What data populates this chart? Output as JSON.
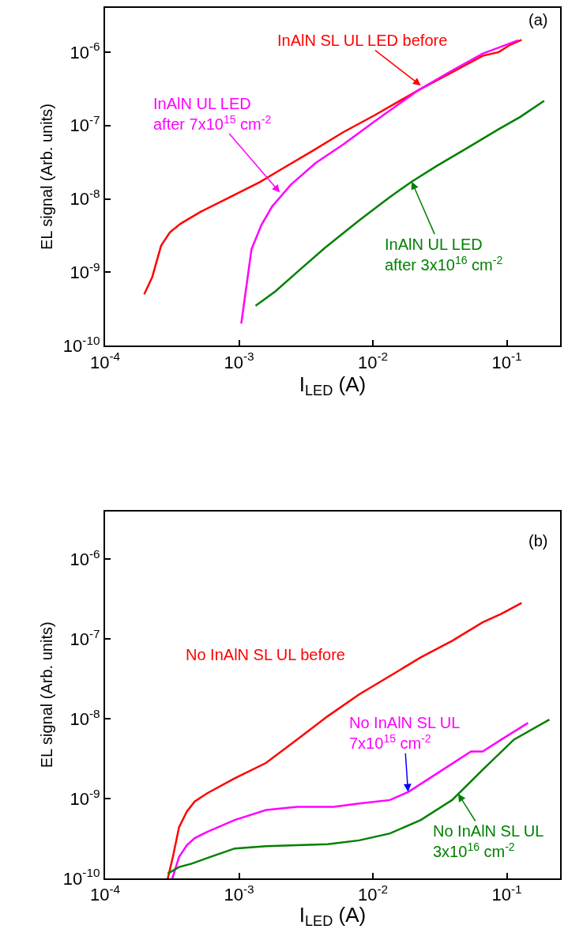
{
  "chart_data": [
    {
      "type": "line",
      "xlabel": "I$_{LED}$ (A)",
      "ylabel": "EL signal (Arb. units)",
      "log": "xy",
      "xlim": [
        0.0001,
        0.25
      ],
      "ylim": [
        1e-10,
        4e-06
      ],
      "xticks": [
        {
          "value": 0.0001,
          "label": "10$^{-4}$"
        },
        {
          "value": 0.001,
          "label": "10$^{-3}$"
        },
        {
          "value": 0.01,
          "label": "10$^{-2}$"
        },
        {
          "value": 0.1,
          "label": "10$^{-1}$"
        }
      ],
      "yticks": [
        {
          "value": 1e-10,
          "label": "10$^{-10}$"
        },
        {
          "value": 1e-09,
          "label": "10$^{-9}$"
        },
        {
          "value": 1e-08,
          "label": "10$^{-8}$"
        },
        {
          "value": 1e-07,
          "label": "10$^{-7}$"
        },
        {
          "value": 1e-06,
          "label": "10$^{-6}$"
        }
      ],
      "series": [
        {
          "color": "#ff0000",
          "x": [
            0.000196,
            0.000225,
            0.000262,
            0.000305,
            0.000367,
            0.00052,
            0.00104,
            0.00143,
            0.00197,
            0.00354,
            0.006,
            0.0103,
            0.0217,
            0.039,
            0.066,
            0.087,
            0.107,
            0.129
          ],
          "values": [
            5e-10,
            8.6e-10,
            2.3e-09,
            3.5e-09,
            4.6e-09,
            6.7e-09,
            1.26e-08,
            1.69e-08,
            2.4e-08,
            4.5e-08,
            8.1e-08,
            1.38e-07,
            3e-07,
            5.3e-07,
            8.9e-07,
            1e-06,
            1.27e-06,
            1.47e-06
          ]
        },
        {
          "color": "#ff00ff",
          "x": [
            0.00104,
            0.00124,
            0.00147,
            0.00177,
            0.00244,
            0.00373,
            0.006,
            0.0103,
            0.0217,
            0.039,
            0.066,
            0.122
          ],
          "values": [
            2e-10,
            2.05e-09,
            4.4e-09,
            7.9e-09,
            1.56e-08,
            3.07e-08,
            5.5e-08,
            1.14e-07,
            3e-07,
            5.6e-07,
            9.5e-07,
            1.45e-06
          ]
        },
        {
          "color": "#008000",
          "x": [
            0.00133,
            0.00187,
            0.00286,
            0.00438,
            0.0079,
            0.0134,
            0.0195,
            0.0298,
            0.051,
            0.087,
            0.126,
            0.19
          ],
          "values": [
            3.5e-10,
            5.5e-10,
            1.09e-09,
            2.15e-09,
            5.1e-09,
            1.06e-08,
            1.72e-08,
            2.79e-08,
            4.98e-08,
            8.9e-08,
            1.31e-07,
            2.17e-07
          ]
        }
      ],
      "annotations": [
        {
          "text": "InAlN SL UL LED before",
          "x": 0.0228,
          "y": 3.5e-07
        },
        {
          "text": "InAlN UL LED\nafter 7x10$^{15}$ cm$^{-2}$",
          "x": 0.00202,
          "y": 1.22e-08
        },
        {
          "text": "InAlN UL LED\nafter 3x10$^{16}$ cm$^{-2}$",
          "x": 0.0195,
          "y": 1.72e-08
        },
        "(a)"
      ]
    },
    {
      "type": "line",
      "xlabel": "I$_{LED}$ (A)",
      "ylabel": "EL signal (Arb. units)",
      "log": "xy",
      "xlim": [
        0.0001,
        0.25
      ],
      "ylim": [
        1e-10,
        4e-06
      ],
      "xticks": [
        {
          "value": 0.0001,
          "label": "10$^{-4}$"
        },
        {
          "value": 0.001,
          "label": "10$^{-3}$"
        },
        {
          "value": 0.01,
          "label": "10$^{-2}$"
        },
        {
          "value": 0.1,
          "label": "10$^{-1}$"
        }
      ],
      "yticks": [
        {
          "value": 1e-10,
          "label": "10$^{-10}$"
        },
        {
          "value": 1e-09,
          "label": "10$^{-9}$"
        },
        {
          "value": 1e-08,
          "label": "10$^{-8}$"
        },
        {
          "value": 1e-07,
          "label": "10$^{-7}$"
        },
        {
          "value": 1e-06,
          "label": "10$^{-6}$"
        }
      ],
      "series": [
        {
          "color": "#ff0000",
          "x": [
            0.000294,
            0.000321,
            0.000357,
            0.000408,
            0.000467,
            0.00058,
            0.00093,
            0.00159,
            0.00271,
            0.0046,
            0.0079,
            0.0134,
            0.0228,
            0.039,
            0.066,
            0.091,
            0.129
          ],
          "values": [
            1e-10,
            1.86e-10,
            4.4e-10,
            6.9e-10,
            9.2e-10,
            1.17e-09,
            1.8e-09,
            2.8e-09,
            5.5e-09,
            1.08e-08,
            2.03e-08,
            3.45e-08,
            5.9e-08,
            9.5e-08,
            1.62e-07,
            2.07e-07,
            2.84e-07
          ]
        },
        {
          "color": "#ff00ff",
          "x": [
            0.000318,
            0.000357,
            0.000408,
            0.000467,
            0.00058,
            0.00093,
            0.00159,
            0.00271,
            0.0051,
            0.0079,
            0.0134,
            0.0185,
            0.0254,
            0.0332,
            0.054,
            0.066,
            0.091,
            0.144
          ],
          "values": [
            1e-10,
            1.86e-10,
            2.6e-10,
            3.2e-10,
            3.84e-10,
            5.4e-10,
            7.2e-10,
            7.9e-10,
            7.9e-10,
            8.7e-10,
            9.6e-10,
            1.22e-09,
            1.72e-09,
            2.3e-09,
            3.9e-09,
            3.9e-09,
            5.5e-09,
            8.9e-09
          ]
        },
        {
          "color": "#008000",
          "x": [
            0.000294,
            0.000357,
            0.000443,
            0.00061,
            0.00093,
            0.00159,
            0.0046,
            0.0079,
            0.0134,
            0.0228,
            0.039,
            0.066,
            0.113,
            0.208
          ],
          "values": [
            1.15e-10,
            1.39e-10,
            1.53e-10,
            1.86e-10,
            2.37e-10,
            2.53e-10,
            2.68e-10,
            3e-10,
            3.66e-10,
            5.4e-10,
            9.6e-10,
            2.3e-09,
            5.5e-09,
            9.8e-09
          ]
        }
      ],
      "annotations": [
        "No InAlN SL UL before",
        {
          "text": "No InAlN SL UL\n7x10$^{15}$ cm$^{-2}$",
          "x": 0.0183,
          "y": 1.22e-09
        },
        {
          "text": "No InAlN SL UL\n3x10$^{16}$ cm$^{-2}$",
          "x": 0.0433,
          "y": 1.15e-09
        },
        "(b)"
      ]
    }
  ]
}
